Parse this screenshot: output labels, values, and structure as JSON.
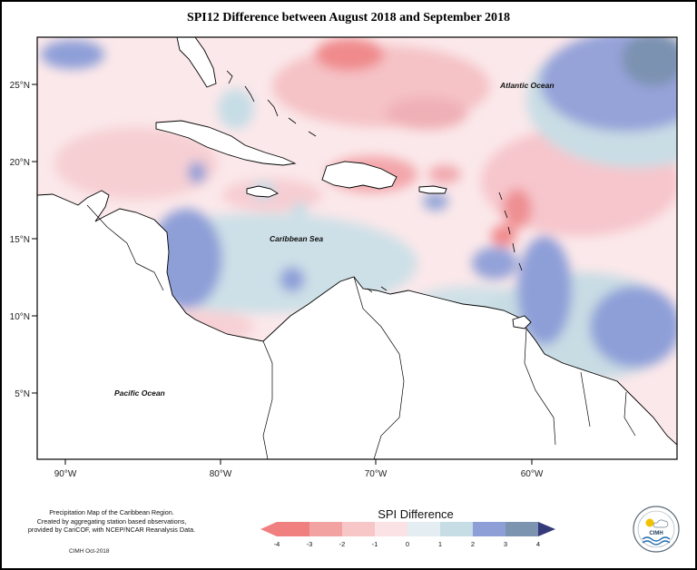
{
  "title": "SPI12 Difference between August 2018 and September 2018",
  "axes": {
    "x_ticks": [
      "90°W",
      "80°W",
      "70°W",
      "60°W"
    ],
    "y_ticks": [
      "25°N",
      "20°N",
      "15°N",
      "10°N",
      "5°N"
    ]
  },
  "labels": {
    "atlantic": "Atlantic Ocean",
    "caribbean": "Caribbean Sea",
    "pacific": "Pacific Ocean"
  },
  "caption": {
    "line1": "Precipitation Map of the Caribbean Region.",
    "line2": "Created by aggregating station based observations,",
    "line3": "provided by CariCOF, with NCEP/NCAR Reanalysis Data.",
    "credit": "CIMH Oct-2018"
  },
  "legend": {
    "title": "SPI Difference",
    "ticks": [
      "-4",
      "-3",
      "-2",
      "-1",
      "0",
      "1",
      "2",
      "3",
      "4"
    ],
    "colors": [
      "#f08080",
      "#f3a2a2",
      "#f7c6c6",
      "#fbe3e5",
      "#e4edf1",
      "#c6dde6",
      "#8e9fd8",
      "#7c94b0",
      "#5a6398",
      "#343a7a"
    ]
  },
  "logo": {
    "text": "CIMH"
  },
  "colors": {
    "strong_neg": "#f08080",
    "mod_neg": "#f3a2a2",
    "light_neg": "#f7c6c6",
    "near_zero": "#fbe3e5",
    "light_pos": "#c6dde6",
    "mod_pos": "#8e9fd8",
    "strong_pos": "#7c94b0"
  }
}
